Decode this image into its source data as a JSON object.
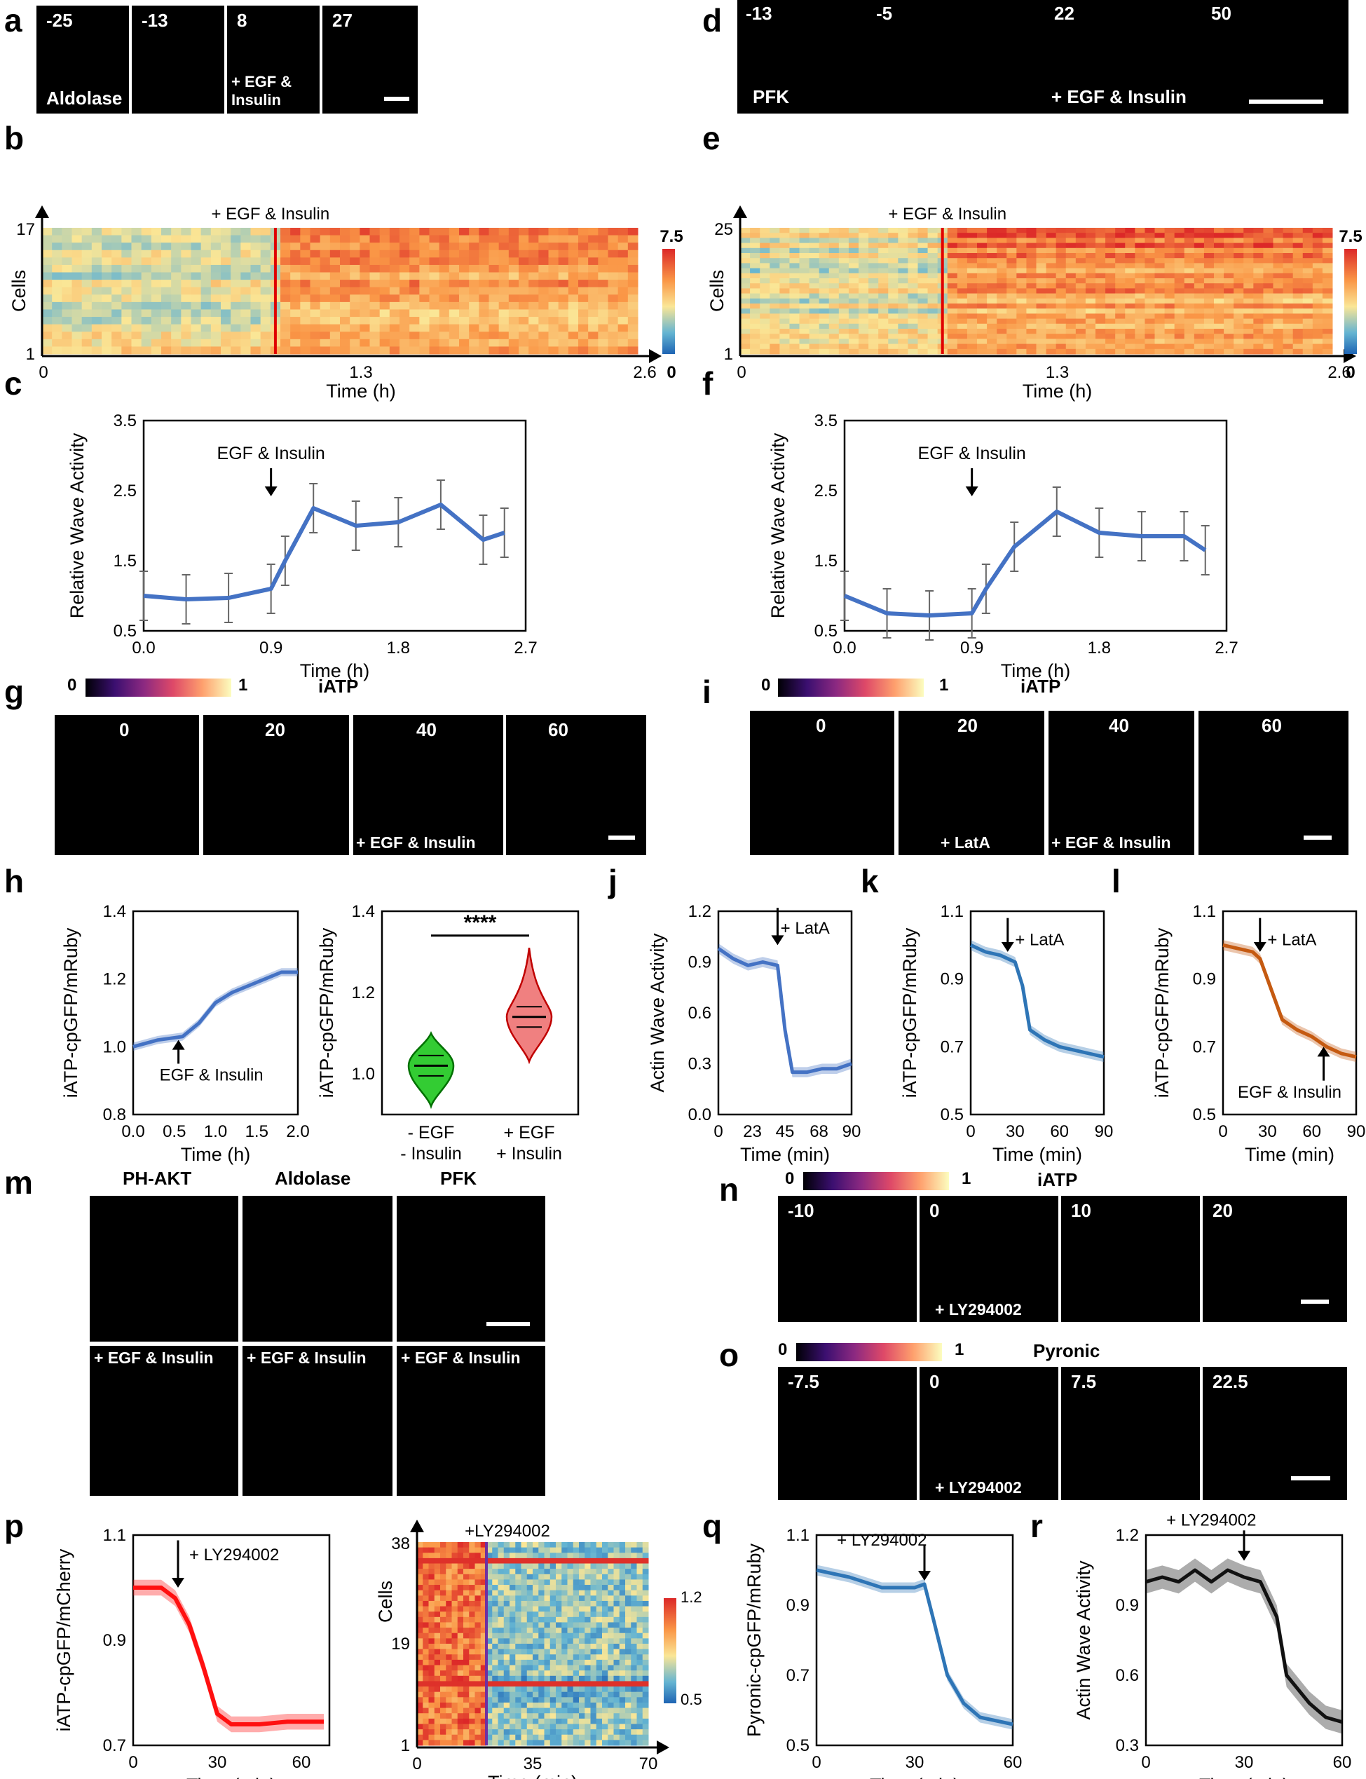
{
  "panels": {
    "a": {
      "letter": "a",
      "times": [
        "-25",
        "-13",
        "8",
        "27"
      ],
      "probe": "Aldolase",
      "treat": "+ EGF & Insulin"
    },
    "d": {
      "letter": "d",
      "times": [
        "-13",
        "-5",
        "22",
        "50"
      ],
      "probe": "PFK",
      "treat": "+ EGF & Insulin"
    },
    "b": {
      "letter": "b",
      "annot": "+ EGF & Insulin",
      "ylabel": "Cells",
      "ytop": "17",
      "ybot": "1",
      "xticks": [
        "0",
        "1.3",
        "2.6"
      ],
      "xlabel": "Time (h)",
      "cmax": "7.5",
      "cmin": "0"
    },
    "e": {
      "letter": "e",
      "annot": "+ EGF & Insulin",
      "ylabel": "Cells",
      "ytop": "25",
      "ybot": "1",
      "xticks": [
        "0",
        "1.3",
        "2.6"
      ],
      "xlabel": "Time (h)",
      "cmax": "7.5",
      "cmin": "0"
    },
    "c": {
      "letter": "c",
      "annot": "EGF & Insulin",
      "ylabel": "Relative Wave Activity",
      "yticks": [
        "0.5",
        "1.5",
        "2.5",
        "3.5"
      ],
      "xticks": [
        "0.0",
        "0.9",
        "1.8",
        "2.7"
      ],
      "xlabel": "Time (h)"
    },
    "f": {
      "letter": "f",
      "annot": "EGF & Insulin",
      "ylabel": "Relative Wave Activity",
      "yticks": [
        "0.5",
        "1.5",
        "2.5",
        "3.5"
      ],
      "xticks": [
        "0.0",
        "0.9",
        "1.8",
        "2.7"
      ],
      "xlabel": "Time (h)"
    },
    "g": {
      "letter": "g",
      "cmin": "0",
      "cmax": "1",
      "probe": "iATP",
      "times": [
        "0",
        "20",
        "40",
        "60"
      ],
      "treat": "+ EGF & Insulin"
    },
    "i": {
      "letter": "i",
      "cmin": "0",
      "cmax": "1",
      "probe": "iATP",
      "times": [
        "0",
        "20",
        "40",
        "60"
      ],
      "treat1": "+ LatA",
      "treat2": "+ EGF & Insulin"
    },
    "h": {
      "letter": "h",
      "ylabel": "iATP-cpGFP/mRuby",
      "yticks": [
        "0.8",
        "1.0",
        "1.2",
        "1.4"
      ],
      "xticks": [
        "0.0",
        "0.5",
        "1.0",
        "1.5",
        "2.0"
      ],
      "xlabel": "Time (h)",
      "annot": "EGF & Insulin",
      "v_yticks": [
        "1.0",
        "1.2",
        "1.4"
      ],
      "v_sig": "****",
      "v_cat1a": "- EGF",
      "v_cat1b": "- Insulin",
      "v_cat2a": "+ EGF",
      "v_cat2b": "+ Insulin"
    },
    "j": {
      "letter": "j",
      "ylabel": "Actin Wave Activity",
      "yticks": [
        "0.0",
        "0.3",
        "0.6",
        "0.9",
        "1.2"
      ],
      "xticks": [
        "0",
        "23",
        "45",
        "68",
        "90"
      ],
      "xlabel": "Time (min)",
      "annot": "+ LatA"
    },
    "k": {
      "letter": "k",
      "ylabel": "iATP-cpGFP/mRuby",
      "yticks": [
        "0.5",
        "0.7",
        "0.9",
        "1.1"
      ],
      "xticks": [
        "0",
        "30",
        "60",
        "90"
      ],
      "xlabel": "Time (min)",
      "annot": "+ LatA"
    },
    "l": {
      "letter": "l",
      "ylabel": "iATP-cpGFP/mRuby",
      "yticks": [
        "0.5",
        "0.7",
        "0.9",
        "1.1"
      ],
      "xticks": [
        "0",
        "30",
        "60",
        "90"
      ],
      "xlabel": "Time (min)",
      "annot": "+ LatA",
      "annot2": "EGF & Insulin"
    },
    "m": {
      "letter": "m",
      "cols": [
        "PH-AKT",
        "Aldolase",
        "PFK"
      ],
      "treat": "+ EGF & Insulin"
    },
    "n": {
      "letter": "n",
      "cmin": "0",
      "cmax": "1",
      "probe": "iATP",
      "times": [
        "-10",
        "0",
        "10",
        "20"
      ],
      "treat": "+ LY294002"
    },
    "o": {
      "letter": "o",
      "cmin": "0",
      "cmax": "1",
      "probe": "Pyronic",
      "times": [
        "-7.5",
        "0",
        "7.5",
        "22.5"
      ],
      "treat": "+ LY294002"
    },
    "p": {
      "letter": "p",
      "ylabel": "iATP-cpGFP/mCherry",
      "yticks": [
        "0.7",
        "0.9",
        "1.1"
      ],
      "xticks": [
        "0",
        "30",
        "60"
      ],
      "xlabel": "Time (min)",
      "annot": "+ LY294002",
      "h_annot": "+LY294002",
      "h_ylabel": "Cells",
      "h_yticks": [
        "1",
        "19",
        "38"
      ],
      "h_xticks": [
        "0",
        "35",
        "70"
      ],
      "h_xlabel": "Time (min)",
      "cmax": "1.2",
      "cmin": "0.5"
    },
    "q": {
      "letter": "q",
      "ylabel": "Pyronic-cpGFP/mRuby",
      "yticks": [
        "0.5",
        "0.7",
        "0.9",
        "1.1"
      ],
      "xticks": [
        "0",
        "30",
        "60"
      ],
      "xlabel": "Time (min)",
      "annot": "+ LY294002"
    },
    "r": {
      "letter": "r",
      "ylabel": "Actin Wave Activity",
      "yticks": [
        "0.3",
        "0.6",
        "0.9",
        "1.2"
      ],
      "xticks": [
        "0",
        "30",
        "60"
      ],
      "xlabel": "Time (min)",
      "annot": "+ LY294002"
    }
  },
  "chart_data": [
    {
      "panel": "c",
      "type": "line",
      "x": [
        0.0,
        0.3,
        0.6,
        0.9,
        1.0,
        1.2,
        1.5,
        1.8,
        2.1,
        2.4,
        2.55
      ],
      "values": [
        1.0,
        0.95,
        0.97,
        1.1,
        1.5,
        2.25,
        2.0,
        2.05,
        2.3,
        1.8,
        1.9
      ],
      "xlim": [
        0,
        2.7
      ],
      "ylim": [
        0.5,
        3.5
      ],
      "color": "#4472c4"
    },
    {
      "panel": "f",
      "type": "line",
      "x": [
        0.0,
        0.3,
        0.6,
        0.9,
        1.0,
        1.2,
        1.5,
        1.8,
        2.1,
        2.4,
        2.55
      ],
      "values": [
        1.0,
        0.75,
        0.72,
        0.75,
        1.1,
        1.7,
        2.2,
        1.9,
        1.85,
        1.85,
        1.65
      ],
      "xlim": [
        0,
        2.7
      ],
      "ylim": [
        0.5,
        3.5
      ],
      "color": "#4472c4"
    },
    {
      "panel": "h",
      "type": "line",
      "x": [
        0.0,
        0.3,
        0.6,
        0.8,
        1.0,
        1.2,
        1.5,
        1.8,
        2.0
      ],
      "values": [
        1.0,
        1.02,
        1.03,
        1.07,
        1.13,
        1.16,
        1.19,
        1.22,
        1.22
      ],
      "xlim": [
        0,
        2.0
      ],
      "ylim": [
        0.8,
        1.4
      ],
      "color": "#4472c4"
    },
    {
      "panel": "h-violin",
      "type": "violin",
      "categories": [
        "- EGF - Insulin",
        "+ EGF + Insulin"
      ],
      "values": [
        1.02,
        1.14
      ],
      "ylim": [
        0.9,
        1.4
      ],
      "colors": [
        "#33cc33",
        "#f08080"
      ]
    },
    {
      "panel": "j",
      "type": "line",
      "x": [
        0,
        10,
        20,
        30,
        40,
        45,
        50,
        60,
        70,
        80,
        90
      ],
      "values": [
        0.98,
        0.92,
        0.88,
        0.9,
        0.88,
        0.5,
        0.25,
        0.25,
        0.27,
        0.27,
        0.3
      ],
      "xlim": [
        0,
        90
      ],
      "ylim": [
        0,
        1.2
      ],
      "color": "#4472c4"
    },
    {
      "panel": "k",
      "type": "line",
      "x": [
        0,
        10,
        20,
        30,
        35,
        40,
        50,
        60,
        70,
        80,
        90
      ],
      "values": [
        1.0,
        0.98,
        0.97,
        0.95,
        0.88,
        0.75,
        0.72,
        0.7,
        0.69,
        0.68,
        0.67
      ],
      "xlim": [
        0,
        90
      ],
      "ylim": [
        0.5,
        1.1
      ],
      "color": "#2e75b6"
    },
    {
      "panel": "l",
      "type": "line",
      "x": [
        0,
        10,
        20,
        25,
        30,
        40,
        50,
        60,
        70,
        80,
        90
      ],
      "values": [
        1.0,
        0.99,
        0.98,
        0.96,
        0.9,
        0.78,
        0.75,
        0.73,
        0.7,
        0.68,
        0.67
      ],
      "xlim": [
        0,
        90
      ],
      "ylim": [
        0.5,
        1.1
      ],
      "color": "#c55a11"
    },
    {
      "panel": "p",
      "type": "line",
      "x": [
        0,
        10,
        15,
        20,
        25,
        30,
        35,
        45,
        55,
        68
      ],
      "values": [
        1.0,
        1.0,
        0.98,
        0.93,
        0.85,
        0.76,
        0.74,
        0.74,
        0.745,
        0.745
      ],
      "xlim": [
        0,
        70
      ],
      "ylim": [
        0.7,
        1.1
      ],
      "color": "#ff1010"
    },
    {
      "panel": "q",
      "type": "line",
      "x": [
        0,
        10,
        20,
        30,
        33,
        36,
        40,
        45,
        50,
        60
      ],
      "values": [
        1.0,
        0.98,
        0.95,
        0.95,
        0.96,
        0.85,
        0.7,
        0.62,
        0.58,
        0.56
      ],
      "xlim": [
        0,
        60
      ],
      "ylim": [
        0.5,
        1.1
      ],
      "color": "#2e75b6"
    },
    {
      "panel": "r",
      "type": "line",
      "x": [
        0,
        5,
        10,
        15,
        20,
        25,
        30,
        35,
        40,
        43,
        50,
        55,
        60
      ],
      "values": [
        1.0,
        1.02,
        1.0,
        1.05,
        1.0,
        1.05,
        1.02,
        1.0,
        0.85,
        0.6,
        0.48,
        0.42,
        0.4
      ],
      "xlim": [
        0,
        60
      ],
      "ylim": [
        0.3,
        1.2
      ],
      "color": "#111111"
    }
  ]
}
